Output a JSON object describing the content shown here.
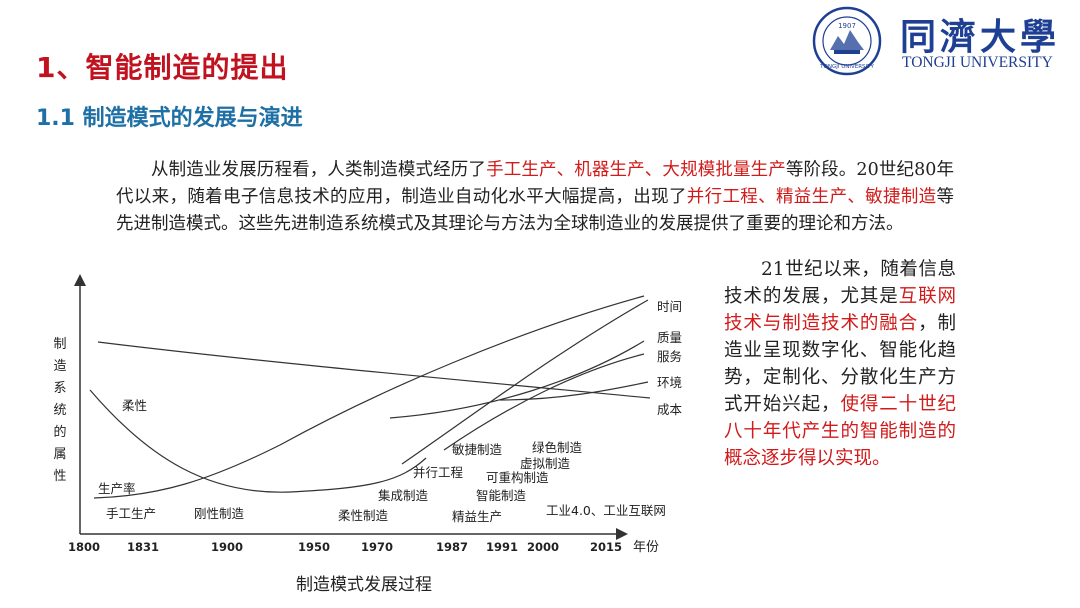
{
  "header": {
    "title": "1、智能制造的提出",
    "subtitle": "1.1 制造模式的发展与演进"
  },
  "logo": {
    "name_cn": "同濟大學",
    "name_en": "TONGJI UNIVERSITY",
    "seal_text": "1907",
    "seal_ring": "TONGJI UNIVERSITY"
  },
  "intro": {
    "p1": "从制造业发展历程看，人类制造模式经历了",
    "r1": "手工生产、机器生产、大规模批量生产",
    "p2": "等阶段。20世纪80年代以来，随着电子信息技术的应用，制造业自动化水平大幅提高，出现了",
    "r2": "并行工程、精益生产、敏捷制造",
    "p3": "等先进制造模式。这些先进制造系统模式及其理论与方法为全球制造业的发展提供了重要的理论和方法。"
  },
  "side": {
    "p1": "21世纪以来，随着信息技术的发展，尤其是",
    "r1": "互联网技术与制造技术的融合",
    "p2": "，制造业呈现数字化、智能化趋势，定制化、分散化生产方式开始兴起，",
    "r2": "使得二十世纪八十年代产生的智能制造的概念逐步得以实现。"
  },
  "diagram": {
    "y_axis_label": [
      "制",
      "造",
      "系",
      "统",
      "的",
      "属",
      "性"
    ],
    "x_axis_unit": "年份",
    "x_ticks": [
      "1800",
      "1831",
      "1900",
      "1950",
      "1970",
      "1987",
      "1991",
      "2000",
      "2015"
    ],
    "curves": {
      "time": "时间",
      "quality": "质量",
      "service": "服务",
      "environment": "环境",
      "cost": "成本",
      "flexibility": "柔性",
      "productivity": "生产率"
    },
    "modes": {
      "handcraft": "手工生产",
      "rigid": "刚性制造",
      "flexible": "柔性制造",
      "integrated": "集成制造",
      "concurrent": "并行工程",
      "agile": "敏捷制造",
      "lean": "精益生产",
      "intelligent": "智能制造",
      "reconfigurable": "可重构制造",
      "virtual": "虚拟制造",
      "green": "绿色制造",
      "industry40": "工业4.0、工业互联网"
    },
    "caption": "制造模式发展过程"
  }
}
